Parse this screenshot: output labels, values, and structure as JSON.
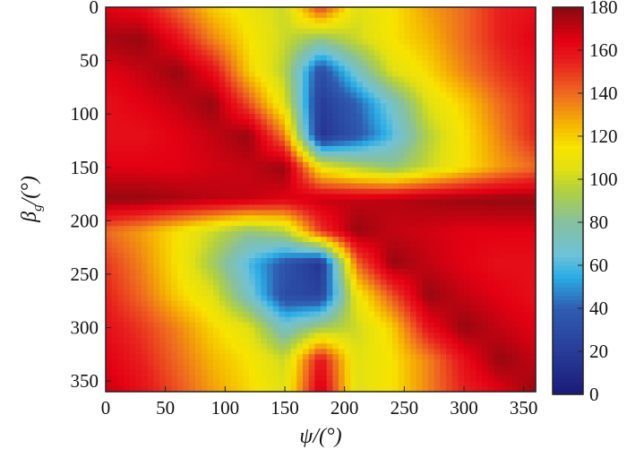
{
  "chart_data": {
    "type": "heatmap",
    "title": "",
    "xlabel": "ψ/(°)",
    "ylabel_main": "β",
    "ylabel_sub": "g",
    "ylabel_tail": "/(°)",
    "xlim": [
      0,
      360
    ],
    "ylim": [
      0,
      360
    ],
    "y_inverted": true,
    "x": [
      0,
      30,
      60,
      90,
      120,
      150,
      180,
      210,
      240,
      270,
      300,
      330,
      360
    ],
    "y": [
      0,
      30,
      60,
      90,
      120,
      150,
      180,
      210,
      240,
      270,
      300,
      330,
      360
    ],
    "z": [
      [
        165,
        160,
        140,
        120,
        110,
        100,
        150,
        105,
        115,
        130,
        140,
        155,
        160
      ],
      [
        175,
        178,
        160,
        135,
        115,
        100,
        85,
        100,
        115,
        125,
        140,
        155,
        165
      ],
      [
        165,
        170,
        178,
        160,
        120,
        95,
        30,
        70,
        105,
        118,
        135,
        150,
        160
      ],
      [
        160,
        165,
        170,
        178,
        145,
        105,
        20,
        40,
        70,
        105,
        120,
        140,
        155
      ],
      [
        160,
        160,
        165,
        170,
        178,
        135,
        15,
        35,
        60,
        95,
        115,
        135,
        155
      ],
      [
        165,
        165,
        165,
        168,
        170,
        178,
        110,
        95,
        85,
        100,
        115,
        130,
        140
      ],
      [
        178,
        178,
        175,
        172,
        170,
        165,
        170,
        170,
        172,
        175,
        177,
        178,
        178
      ],
      [
        140,
        130,
        115,
        100,
        85,
        95,
        150,
        178,
        170,
        168,
        165,
        165,
        165
      ],
      [
        150,
        135,
        115,
        90,
        60,
        35,
        15,
        140,
        178,
        170,
        165,
        160,
        160
      ],
      [
        155,
        140,
        120,
        105,
        70,
        30,
        25,
        110,
        145,
        178,
        170,
        165,
        160
      ],
      [
        160,
        150,
        135,
        118,
        105,
        70,
        90,
        100,
        120,
        160,
        178,
        170,
        165
      ],
      [
        165,
        155,
        140,
        125,
        115,
        100,
        160,
        105,
        115,
        135,
        160,
        178,
        170
      ],
      [
        170,
        160,
        145,
        130,
        118,
        105,
        170,
        105,
        115,
        135,
        155,
        165,
        178
      ]
    ],
    "x_ticks": [
      "0",
      "50",
      "100",
      "150",
      "200",
      "250",
      "300",
      "350"
    ],
    "y_ticks": [
      "0",
      "50",
      "100",
      "150",
      "200",
      "250",
      "300",
      "350"
    ],
    "colorbar": {
      "range": [
        0,
        180
      ],
      "ticks": [
        "0",
        "20",
        "40",
        "60",
        "80",
        "100",
        "120",
        "140",
        "160",
        "180"
      ],
      "colormap_stops": [
        [
          0,
          "#1a1a78"
        ],
        [
          20,
          "#283c98"
        ],
        [
          40,
          "#2f5db0"
        ],
        [
          55,
          "#2aaee6"
        ],
        [
          65,
          "#6ec2d8"
        ],
        [
          80,
          "#86c0a0"
        ],
        [
          95,
          "#b2d040"
        ],
        [
          105,
          "#e2e012"
        ],
        [
          115,
          "#f7e400"
        ],
        [
          125,
          "#f5b800"
        ],
        [
          140,
          "#ee6a20"
        ],
        [
          155,
          "#e81e1e"
        ],
        [
          165,
          "#e30012"
        ],
        [
          180,
          "#880a10"
        ]
      ]
    },
    "grid": false
  }
}
